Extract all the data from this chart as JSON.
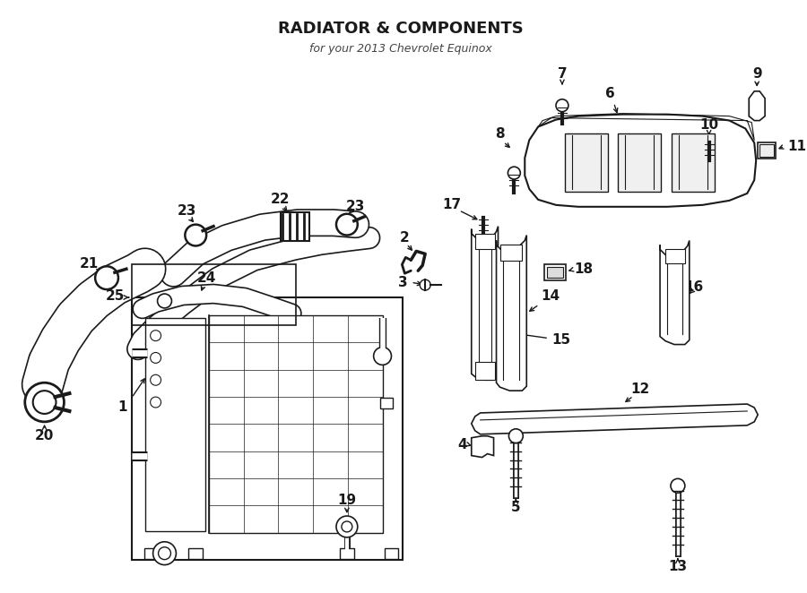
{
  "title": "RADIATOR & COMPONENTS",
  "subtitle": "for your 2013 Chevrolet Equinox",
  "bg_color": "#ffffff",
  "lc": "#1a1a1a",
  "fig_width": 9.0,
  "fig_height": 6.62,
  "dpi": 100
}
